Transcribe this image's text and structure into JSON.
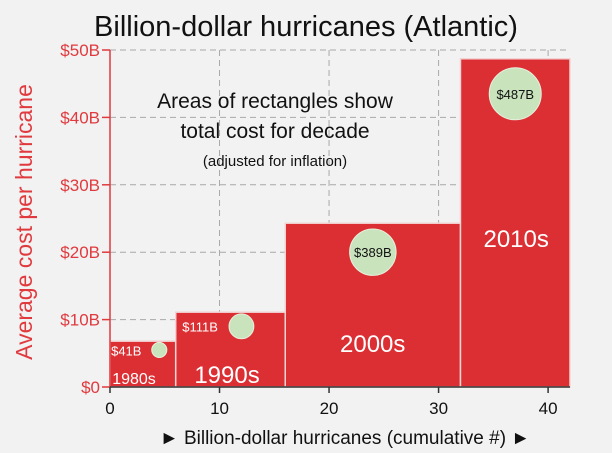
{
  "chart_data": {
    "type": "bar",
    "variant": "variable-width",
    "title": "Billion-dollar hurricanes (Atlantic)",
    "xlabel": "► Billion-dollar hurricanes (cumulative #) ►",
    "ylabel": "Average cost per hurricane",
    "xlim": [
      0,
      42
    ],
    "ylim": [
      0,
      50
    ],
    "x_ticks": [
      "0",
      "10",
      "20",
      "30",
      "40"
    ],
    "x_tick_values": [
      0,
      10,
      20,
      30,
      40
    ],
    "y_ticks": [
      "$0",
      "$10B",
      "$20B",
      "$30B",
      "$40B",
      "$50B"
    ],
    "y_tick_values": [
      0,
      10,
      20,
      30,
      40,
      50
    ],
    "grid": true,
    "annotation": {
      "line1": "Areas of rectangles show",
      "line2": "total cost for decade",
      "line3": "(adjusted for inflation)"
    },
    "bars": [
      {
        "decade": "1980s",
        "x_start": 0,
        "x_end": 6,
        "avg_cost": 6.8,
        "total_label": "$41B",
        "circle_value": 41,
        "circle_at": [
          4.5,
          5.5
        ]
      },
      {
        "decade": "1990s",
        "x_start": 6,
        "x_end": 16,
        "avg_cost": 11.1,
        "total_label": "$111B",
        "circle_value": 111,
        "circle_at": [
          12,
          9
        ]
      },
      {
        "decade": "2000s",
        "x_start": 16,
        "x_end": 32,
        "avg_cost": 24.3,
        "total_label": "$389B",
        "circle_value": 389,
        "circle_at": [
          24,
          20
        ]
      },
      {
        "decade": "2010s",
        "x_start": 32,
        "x_end": 42,
        "avg_cost": 48.7,
        "total_label": "$487B",
        "circle_value": 487,
        "circle_at": [
          37,
          43.5
        ]
      }
    ],
    "colors": {
      "bar": "#dc2f33",
      "bar_edge": "#f2d4d4",
      "circle": "#c9e3bd",
      "circle_edge": "#e6f2df",
      "axis_red": "#e03a3e",
      "grid": "#8a8a8a"
    }
  }
}
